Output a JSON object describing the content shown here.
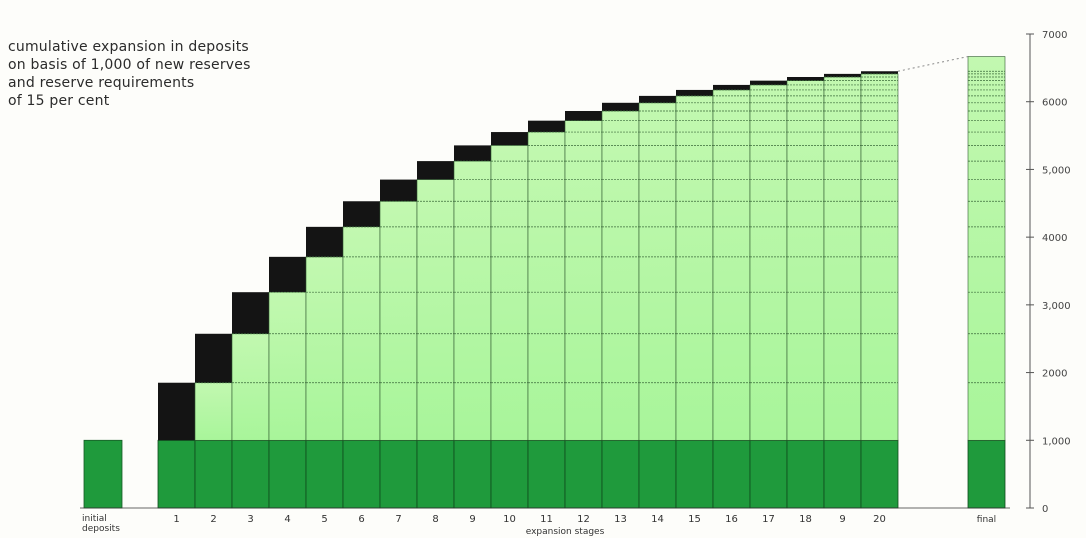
{
  "chart_data": {
    "type": "bar",
    "title": "cumulative expansion in deposits\non basis of 1,000 of new reserves\nand reserve requirements\nof 15 per cent",
    "xlabel": "expansion stages",
    "ylabel": "",
    "ylim": [
      0,
      7000
    ],
    "yticks": [
      "0",
      "1,000",
      "2000",
      "3,000",
      "4000",
      "5,000",
      "6000",
      "7000"
    ],
    "initial": {
      "label": "initial deposits",
      "value": 1000
    },
    "stages": [
      "1",
      "2",
      "3",
      "4",
      "5",
      "6",
      "7",
      "8",
      "9",
      "10",
      "11",
      "12",
      "13",
      "14",
      "15",
      "16",
      "17",
      "18",
      "9",
      "20"
    ],
    "cumulative_new_deposits": [
      850,
      1573,
      2187,
      2709,
      3152,
      3530,
      3850,
      4123,
      4355,
      4552,
      4720,
      4863,
      4984,
      5086,
      5174,
      5248,
      5311,
      5365,
      5411,
      5450
    ],
    "stage_increments": [
      850,
      723,
      614,
      522,
      444,
      377,
      321,
      272,
      232,
      197,
      167,
      142,
      121,
      103,
      88,
      74,
      63,
      54,
      46,
      39
    ],
    "final": {
      "label": "final",
      "value": 6667
    },
    "colors": {
      "base": "#1f9a3c",
      "cumulative": "#a8f59a",
      "increment": "#141414",
      "gridline": "#3a6a3a"
    }
  }
}
